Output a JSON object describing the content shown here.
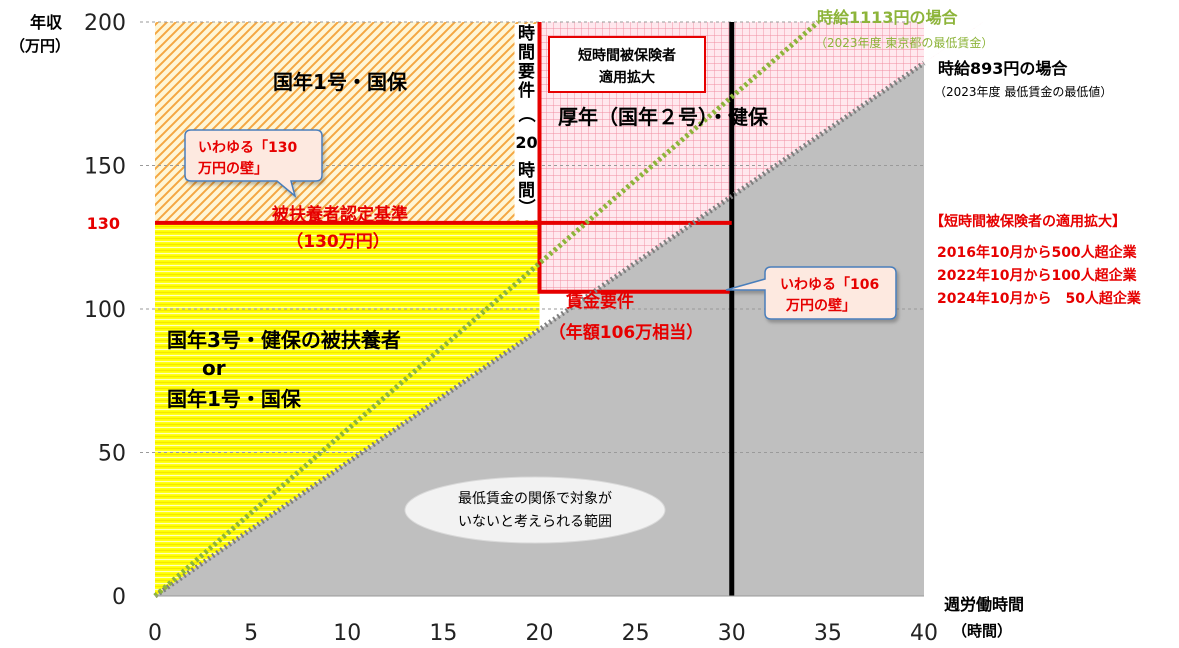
{
  "chart_data": {
    "type": "area",
    "xlim": [
      0,
      40
    ],
    "ylim": [
      0,
      200
    ],
    "x_ticks": [
      0,
      5,
      10,
      15,
      20,
      25,
      30,
      35,
      40
    ],
    "y_ticks": [
      0,
      50,
      100,
      150,
      200
    ],
    "y_tick_130": "130",
    "ylabel_lines": [
      "年収",
      "（万円）"
    ],
    "xlabel_lines": [
      "週労働時間",
      "（時間）"
    ],
    "min_wage_line": {
      "x": [
        0,
        40
      ],
      "y": [
        0,
        185.7
      ],
      "label": "時給893円の場合",
      "sub": "（2023年度 最低賃金の最低値）",
      "color": "#808080"
    },
    "tokyo_wage_line": {
      "x": [
        0,
        34.5
      ],
      "y": [
        0,
        200
      ],
      "label": "時給1113円の場合",
      "sub": "（2023年度 東京都の最低賃金）",
      "color": "#8DB43A"
    },
    "dependent_threshold": {
      "y": 130,
      "label": "被扶養者認定基準",
      "sub": "（130万円）",
      "color": "#E60000"
    },
    "hours_requirement": {
      "x": 20,
      "y_from": 106,
      "y_to": 200,
      "label_chars": [
        "時",
        "間",
        "要",
        "件",
        "（",
        "20",
        "時",
        "間",
        "）"
      ],
      "color": "#E60000"
    },
    "wage_requirement": {
      "y": 106,
      "x_from": 20,
      "x_to": 30,
      "label": "賃金要件",
      "sub": "（年額106万相当）",
      "color": "#E60000"
    },
    "full_time_line": {
      "x": 30,
      "color": "#000000"
    },
    "regions": {
      "kokunen1": "国年1号・国保",
      "kosei": "厚年（国年２号）・健保",
      "dependent_lines": [
        "国年3号・健保の被扶養者",
        "or",
        "国年1号・国保"
      ],
      "no_target_lines": [
        "最低賃金の関係で対象が",
        "いないと考えられる範囲"
      ]
    },
    "callouts": {
      "wall130_lines": [
        "いわゆる「130",
        "万円の壁」"
      ],
      "wall106_lines": [
        "いわゆる「106",
        "万円の壁」"
      ],
      "expansion_box_lines": [
        "短時間被保険者",
        "適用拡大"
      ]
    },
    "expansion_note": {
      "title": "【短時間被保険者の適用拡大】",
      "lines": [
        "2016年10月から500人超企業",
        "2022年10月から100人超企業",
        "2024年10月から　50人超企業"
      ]
    },
    "colors": {
      "yellow_fill": "#FFFF00",
      "hatch_orange": "#F4A742",
      "pink_fill": "#FFD9E0",
      "pink_grid": "#F08CA0",
      "gray_fill": "#BFBFBF",
      "red": "#E60000",
      "callout_border": "#4A7EBB",
      "callout_fill": "#FDE9E0"
    }
  }
}
